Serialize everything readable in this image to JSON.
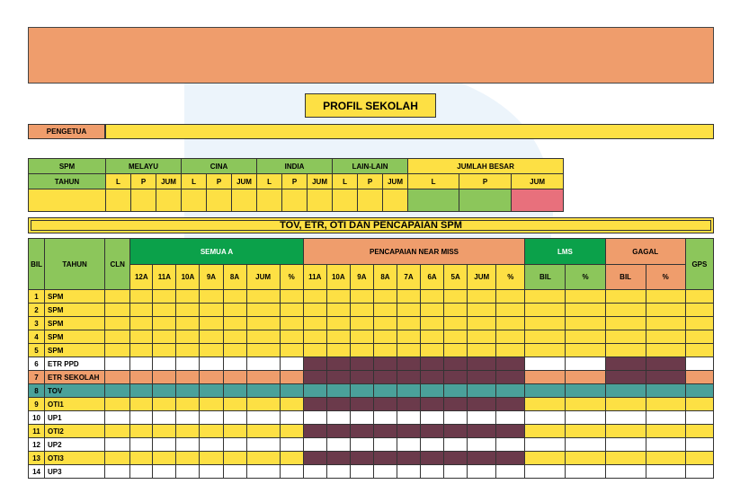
{
  "header": {
    "title": "PROFIL SEKOLAH",
    "pengetua_label": "PENGETUA"
  },
  "enrolment": {
    "row1": [
      "SPM",
      "MELAYU",
      "CINA",
      "INDIA",
      "LAIN-LAIN",
      "JUMLAH BESAR"
    ],
    "row2_first": "TAHUN",
    "sub": [
      "L",
      "P",
      "JUM"
    ],
    "total_sub": [
      "L",
      "P",
      "JUM"
    ]
  },
  "section_title": "TOV, ETR, OTI DAN PENCAPAIAN SPM",
  "results": {
    "head": {
      "bil": "BIL",
      "tahun": "TAHUN",
      "cln": "CLN",
      "semua_a": "SEMUA A",
      "near_miss": "PENCAPAIAN NEAR MISS",
      "lms": "LMS",
      "gagal": "GAGAL",
      "gps": "GPS",
      "semua_cols": [
        "12A",
        "11A",
        "10A",
        "9A",
        "8A",
        "JUM",
        "%"
      ],
      "near_cols": [
        "11A",
        "10A",
        "9A",
        "8A",
        "7A",
        "6A",
        "5A",
        "JUM",
        "%"
      ],
      "lms_cols": [
        "BIL",
        "%"
      ],
      "gagal_cols": [
        "BIL",
        "%"
      ]
    },
    "rows": [
      {
        "bil": "1",
        "tahun": "SPM"
      },
      {
        "bil": "2",
        "tahun": "SPM"
      },
      {
        "bil": "3",
        "tahun": "SPM"
      },
      {
        "bil": "4",
        "tahun": "SPM"
      },
      {
        "bil": "5",
        "tahun": "SPM"
      },
      {
        "bil": "6",
        "tahun": "ETR PPD"
      },
      {
        "bil": "7",
        "tahun": "ETR SEKOLAH"
      },
      {
        "bil": "8",
        "tahun": "TOV"
      },
      {
        "bil": "9",
        "tahun": "OTI1"
      },
      {
        "bil": "10",
        "tahun": "UP1"
      },
      {
        "bil": "11",
        "tahun": "OTI2"
      },
      {
        "bil": "12",
        "tahun": "UP2"
      },
      {
        "bil": "13",
        "tahun": "OTI3"
      },
      {
        "bil": "14",
        "tahun": "UP3"
      }
    ]
  },
  "colors": {
    "orange": "#ef9d6c",
    "yellow": "#fde044",
    "green": "#8cc65b",
    "dark_green": "#0ba14a",
    "plum": "#6b3a4b",
    "teal": "#4aa19a",
    "pink": "#e8707c"
  }
}
